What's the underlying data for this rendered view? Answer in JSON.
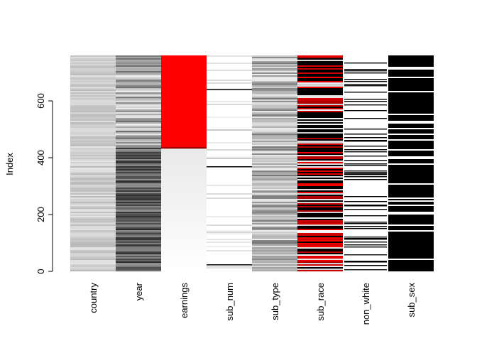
{
  "chart_data": {
    "type": "heatmap",
    "title": "",
    "xlabel": "",
    "ylabel": "Index",
    "ylim": [
      0,
      760
    ],
    "yticks": [
      0,
      200,
      400,
      600
    ],
    "grid": false,
    "legend": "none",
    "columns": [
      {
        "name": "country",
        "pattern": "gray-light"
      },
      {
        "name": "year",
        "pattern": "gray-dark"
      },
      {
        "name": "earnings",
        "pattern": "missing-red",
        "missing_from_index": 437,
        "missing_color": "#ff0000"
      },
      {
        "name": "sub_num",
        "pattern": "sparse-light"
      },
      {
        "name": "sub_type",
        "pattern": "gray-medium"
      },
      {
        "name": "sub_race",
        "pattern": "red-black"
      },
      {
        "name": "non_white",
        "pattern": "binary-white"
      },
      {
        "name": "sub_sex",
        "pattern": "binary-black"
      }
    ]
  }
}
